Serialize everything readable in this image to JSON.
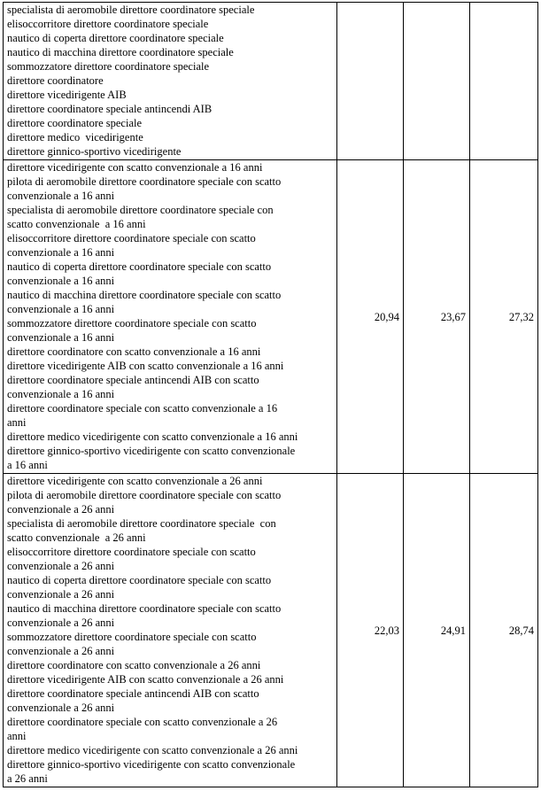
{
  "table": {
    "rows": [
      {
        "lines": [
          "specialista di aeromobile direttore coordinatore speciale",
          "elisoccorritore direttore coordinatore speciale",
          "nautico di coperta direttore coordinatore speciale",
          "nautico di macchina direttore coordinatore speciale",
          "sommozzatore direttore coordinatore speciale",
          "direttore coordinatore",
          "direttore vicedirigente AIB",
          "direttore coordinatore speciale antincendi AIB",
          "direttore coordinatore speciale",
          "direttore medico  vicedirigente",
          "direttore ginnico-sportivo vicedirigente"
        ]
      },
      {
        "lines": [
          "direttore vicedirigente con scatto convenzionale a 16 anni",
          "pilota di aeromobile direttore coordinatore speciale con scatto",
          "convenzionale a 16 anni",
          "specialista di aeromobile direttore coordinatore speciale con",
          "scatto convenzionale  a 16 anni",
          "elisoccorritore direttore coordinatore speciale con scatto",
          "convenzionale a 16 anni",
          "nautico di coperta direttore coordinatore speciale con scatto",
          "convenzionale a 16 anni",
          "nautico di macchina direttore coordinatore speciale con scatto",
          "convenzionale a 16 anni",
          "sommozzatore direttore coordinatore speciale con scatto",
          "convenzionale a 16 anni",
          "direttore coordinatore con scatto convenzionale a 16 anni",
          "direttore vicedirigente AIB con scatto convenzionale a 16 anni",
          "direttore coordinatore speciale antincendi AIB con scatto",
          "convenzionale a 16 anni",
          "direttore coordinatore speciale con scatto convenzionale a 16",
          "anni",
          "direttore medico vicedirigente con scatto convenzionale a 16 anni",
          "direttore ginnico-sportivo vicedirigente con scatto convenzionale",
          "a 16 anni"
        ],
        "values": [
          "20,94",
          "23,67",
          "27,32"
        ]
      },
      {
        "lines": [
          "direttore vicedirigente con scatto convenzionale a 26 anni",
          "pilota di aeromobile direttore coordinatore speciale con scatto",
          "convenzionale a 26 anni",
          "specialista di aeromobile direttore coordinatore speciale  con",
          "scatto convenzionale  a 26 anni",
          "elisoccorritore direttore coordinatore speciale con scatto",
          "convenzionale a 26 anni",
          "nautico di coperta direttore coordinatore speciale con scatto",
          "convenzionale a 26 anni",
          "nautico di macchina direttore coordinatore speciale con scatto",
          "convenzionale a 26 anni",
          "sommozzatore direttore coordinatore speciale con scatto",
          "convenzionale a 26 anni",
          "direttore coordinatore con scatto convenzionale a 26 anni",
          "direttore vicedirigente AIB con scatto convenzionale a 26 anni",
          "direttore coordinatore speciale antincendi AIB con scatto",
          "convenzionale a 26 anni",
          "direttore coordinatore speciale con scatto convenzionale a 26",
          "anni",
          "direttore medico vicedirigente con scatto convenzionale a 26 anni",
          "direttore ginnico-sportivo vicedirigente con scatto convenzionale",
          "a 26 anni"
        ],
        "values": [
          "22,03",
          "24,91",
          "28,74"
        ]
      }
    ]
  }
}
